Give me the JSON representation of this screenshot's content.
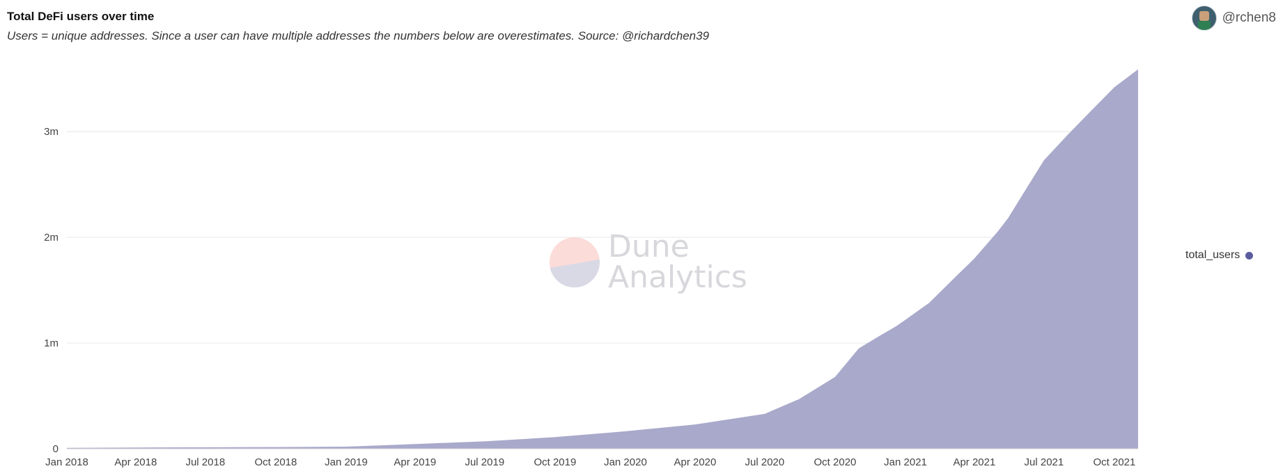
{
  "header": {
    "title": "Total DeFi users over time",
    "subtitle": "Users = unique addresses. Since a user can have multiple addresses the numbers below are overestimates. Source: @richardchen39",
    "author": "@rchen8"
  },
  "watermark": {
    "line1": "Dune",
    "line2": "Analytics"
  },
  "colors": {
    "area_fill": "#a9a9cb",
    "legend_dot": "#5b5ca0",
    "grid": "#e6e6e6"
  },
  "chart_data": {
    "type": "area",
    "series": [
      {
        "name": "total_users",
        "x": [
          "2018-01-01",
          "2018-04-01",
          "2018-07-01",
          "2018-10-01",
          "2019-01-01",
          "2019-04-01",
          "2019-07-01",
          "2019-10-01",
          "2020-01-01",
          "2020-04-01",
          "2020-07-01",
          "2020-08-15",
          "2020-10-01",
          "2020-11-01",
          "2020-12-01",
          "2020-12-20",
          "2021-01-01",
          "2021-02-01",
          "2021-03-01",
          "2021-04-01",
          "2021-05-01",
          "2021-05-15",
          "2021-06-01",
          "2021-07-01",
          "2021-08-01",
          "2021-09-01",
          "2021-10-01",
          "2021-11-01"
        ],
        "values": [
          8000,
          12000,
          14000,
          16000,
          20000,
          45000,
          70000,
          110000,
          165000,
          230000,
          330000,
          470000,
          680000,
          950000,
          1080000,
          1160000,
          1220000,
          1380000,
          1580000,
          1800000,
          2050000,
          2180000,
          2380000,
          2730000,
          2970000,
          3200000,
          3420000,
          3590000
        ]
      }
    ],
    "x_ticks": [
      "Jan 2018",
      "Apr 2018",
      "Jul 2018",
      "Oct 2018",
      "Jan 2019",
      "Apr 2019",
      "Jul 2019",
      "Oct 2019",
      "Jan 2020",
      "Apr 2020",
      "Jul 2020",
      "Oct 2020",
      "Jan 2021",
      "Apr 2021",
      "Jul 2021",
      "Oct 2021"
    ],
    "x_tick_dates": [
      "2018-01-01",
      "2018-04-01",
      "2018-07-01",
      "2018-10-01",
      "2019-01-01",
      "2019-04-01",
      "2019-07-01",
      "2019-10-01",
      "2020-01-01",
      "2020-04-01",
      "2020-07-01",
      "2020-10-01",
      "2021-01-01",
      "2021-04-01",
      "2021-07-01",
      "2021-10-01"
    ],
    "x_range": [
      "2018-01-01",
      "2021-11-01"
    ],
    "y_ticks": [
      0,
      1000000,
      2000000,
      3000000
    ],
    "y_tick_labels": [
      "0",
      "1m",
      "2m",
      "3m"
    ],
    "ylim": [
      0,
      3620000
    ],
    "grid": true,
    "legend_placement": "right"
  }
}
